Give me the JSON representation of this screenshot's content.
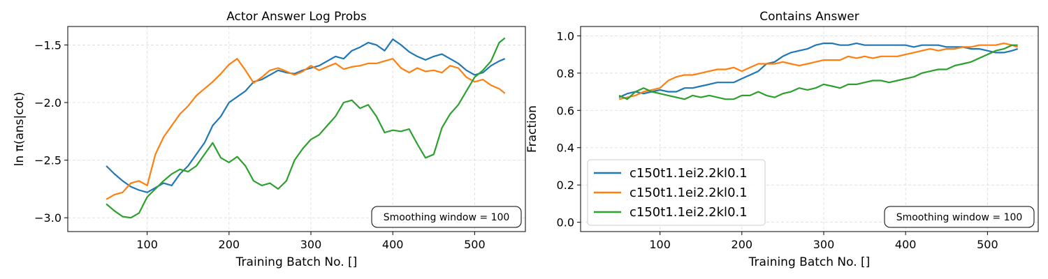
{
  "chart_data": [
    {
      "type": "line",
      "title": "Actor Answer Log Probs",
      "xlabel": "Training Batch No. []",
      "ylabel": "ln π(ans|cot)",
      "xlim": [
        3,
        562
      ],
      "ylim": [
        -3.12,
        -1.34
      ],
      "xticks": [
        100,
        200,
        300,
        400,
        500
      ],
      "yticks": [
        -3.0,
        -2.5,
        -2.0,
        -1.5
      ],
      "ytick_labels": [
        "−3.0",
        "−2.5",
        "−2.0",
        "−1.5"
      ],
      "grid": true,
      "annotation": "Smoothing window = 100",
      "annotation_position": "bottom-right",
      "series": [
        {
          "color": "#1f77b4",
          "x": [
            50,
            60,
            70,
            80,
            90,
            100,
            110,
            120,
            130,
            140,
            150,
            160,
            170,
            180,
            190,
            200,
            210,
            220,
            230,
            240,
            250,
            260,
            270,
            280,
            290,
            300,
            310,
            320,
            330,
            340,
            350,
            360,
            370,
            380,
            390,
            400,
            410,
            420,
            430,
            440,
            450,
            460,
            470,
            480,
            490,
            500,
            510,
            520,
            530,
            537
          ],
          "y": [
            -2.55,
            -2.62,
            -2.68,
            -2.73,
            -2.76,
            -2.78,
            -2.74,
            -2.7,
            -2.72,
            -2.62,
            -2.55,
            -2.45,
            -2.35,
            -2.2,
            -2.12,
            -2.0,
            -1.95,
            -1.9,
            -1.82,
            -1.8,
            -1.76,
            -1.72,
            -1.74,
            -1.75,
            -1.72,
            -1.7,
            -1.68,
            -1.64,
            -1.6,
            -1.62,
            -1.55,
            -1.52,
            -1.48,
            -1.5,
            -1.55,
            -1.45,
            -1.5,
            -1.56,
            -1.6,
            -1.63,
            -1.6,
            -1.58,
            -1.62,
            -1.66,
            -1.72,
            -1.76,
            -1.74,
            -1.68,
            -1.64,
            -1.62
          ]
        },
        {
          "color": "#ff7f0e",
          "x": [
            50,
            60,
            70,
            80,
            90,
            100,
            110,
            120,
            130,
            140,
            150,
            160,
            170,
            180,
            190,
            200,
            210,
            220,
            230,
            240,
            250,
            260,
            270,
            280,
            290,
            300,
            310,
            320,
            330,
            340,
            350,
            360,
            370,
            380,
            390,
            400,
            410,
            420,
            430,
            440,
            450,
            460,
            470,
            480,
            490,
            500,
            510,
            520,
            530,
            537
          ],
          "y": [
            -2.84,
            -2.8,
            -2.78,
            -2.7,
            -2.68,
            -2.72,
            -2.45,
            -2.3,
            -2.2,
            -2.1,
            -2.03,
            -1.94,
            -1.88,
            -1.82,
            -1.75,
            -1.67,
            -1.62,
            -1.72,
            -1.83,
            -1.78,
            -1.72,
            -1.7,
            -1.73,
            -1.76,
            -1.73,
            -1.68,
            -1.72,
            -1.69,
            -1.66,
            -1.71,
            -1.69,
            -1.68,
            -1.66,
            -1.66,
            -1.64,
            -1.62,
            -1.7,
            -1.74,
            -1.7,
            -1.73,
            -1.72,
            -1.74,
            -1.68,
            -1.7,
            -1.78,
            -1.82,
            -1.8,
            -1.85,
            -1.88,
            -1.92
          ]
        },
        {
          "color": "#2ca02c",
          "x": [
            50,
            60,
            70,
            80,
            90,
            100,
            110,
            120,
            130,
            140,
            150,
            160,
            170,
            180,
            190,
            200,
            210,
            220,
            230,
            240,
            250,
            260,
            270,
            280,
            290,
            300,
            310,
            320,
            330,
            340,
            350,
            360,
            370,
            380,
            390,
            400,
            410,
            420,
            430,
            440,
            450,
            460,
            470,
            480,
            490,
            500,
            510,
            520,
            530,
            537
          ],
          "y": [
            -2.88,
            -2.94,
            -2.99,
            -3.0,
            -2.96,
            -2.82,
            -2.75,
            -2.68,
            -2.62,
            -2.58,
            -2.6,
            -2.55,
            -2.45,
            -2.35,
            -2.48,
            -2.52,
            -2.47,
            -2.55,
            -2.68,
            -2.72,
            -2.7,
            -2.75,
            -2.68,
            -2.5,
            -2.4,
            -2.32,
            -2.28,
            -2.2,
            -2.12,
            -2.0,
            -1.98,
            -2.05,
            -2.02,
            -2.12,
            -2.26,
            -2.24,
            -2.25,
            -2.23,
            -2.36,
            -2.48,
            -2.45,
            -2.22,
            -2.1,
            -2.02,
            -1.9,
            -1.78,
            -1.72,
            -1.64,
            -1.48,
            -1.44
          ]
        }
      ]
    },
    {
      "type": "line",
      "title": "Contains Answer",
      "xlabel": "Training Batch No. []",
      "ylabel": "Fraction",
      "xlim": [
        3,
        562
      ],
      "ylim": [
        -0.05,
        1.05
      ],
      "xticks": [
        100,
        200,
        300,
        400,
        500
      ],
      "yticks": [
        0.0,
        0.2,
        0.4,
        0.6,
        0.8,
        1.0
      ],
      "ytick_labels": [
        "0.0",
        "0.2",
        "0.4",
        "0.6",
        "0.8",
        "1.0"
      ],
      "grid": true,
      "annotation": "Smoothing window = 100",
      "annotation_position": "bottom-right",
      "legend_position": "lower-left",
      "series": [
        {
          "name": "c150t1.1ei2.2kl0.1",
          "color": "#1f77b4",
          "x": [
            50,
            60,
            70,
            80,
            90,
            100,
            110,
            120,
            130,
            140,
            150,
            160,
            170,
            180,
            190,
            200,
            210,
            220,
            230,
            240,
            250,
            260,
            270,
            280,
            290,
            300,
            310,
            320,
            330,
            340,
            350,
            360,
            370,
            380,
            390,
            400,
            410,
            420,
            430,
            440,
            450,
            460,
            470,
            480,
            490,
            500,
            510,
            520,
            530,
            537
          ],
          "y": [
            0.67,
            0.69,
            0.7,
            0.69,
            0.7,
            0.71,
            0.7,
            0.7,
            0.72,
            0.72,
            0.73,
            0.74,
            0.75,
            0.75,
            0.75,
            0.77,
            0.79,
            0.81,
            0.85,
            0.86,
            0.89,
            0.91,
            0.92,
            0.93,
            0.95,
            0.96,
            0.96,
            0.95,
            0.95,
            0.96,
            0.95,
            0.95,
            0.95,
            0.95,
            0.95,
            0.95,
            0.94,
            0.95,
            0.95,
            0.95,
            0.94,
            0.94,
            0.94,
            0.93,
            0.93,
            0.92,
            0.91,
            0.91,
            0.92,
            0.93
          ]
        },
        {
          "name": "c150t1.1ei2.2kl0.1",
          "color": "#ff7f0e",
          "x": [
            50,
            60,
            70,
            80,
            90,
            100,
            110,
            120,
            130,
            140,
            150,
            160,
            170,
            180,
            190,
            200,
            210,
            220,
            230,
            240,
            250,
            260,
            270,
            280,
            290,
            300,
            310,
            320,
            330,
            340,
            350,
            360,
            370,
            380,
            390,
            400,
            410,
            420,
            430,
            440,
            450,
            460,
            470,
            480,
            490,
            500,
            510,
            520,
            530,
            537
          ],
          "y": [
            0.66,
            0.67,
            0.68,
            0.7,
            0.71,
            0.72,
            0.76,
            0.78,
            0.79,
            0.79,
            0.8,
            0.81,
            0.82,
            0.82,
            0.83,
            0.81,
            0.83,
            0.85,
            0.85,
            0.85,
            0.86,
            0.85,
            0.84,
            0.85,
            0.86,
            0.87,
            0.87,
            0.87,
            0.89,
            0.88,
            0.89,
            0.88,
            0.89,
            0.89,
            0.89,
            0.9,
            0.91,
            0.92,
            0.93,
            0.92,
            0.93,
            0.93,
            0.94,
            0.94,
            0.95,
            0.95,
            0.95,
            0.96,
            0.95,
            0.94
          ]
        },
        {
          "name": "c150t1.1ei2.2kl0.1",
          "color": "#2ca02c",
          "x": [
            50,
            60,
            70,
            80,
            90,
            100,
            110,
            120,
            130,
            140,
            150,
            160,
            170,
            180,
            190,
            200,
            210,
            220,
            230,
            240,
            250,
            260,
            270,
            280,
            290,
            300,
            310,
            320,
            330,
            340,
            350,
            360,
            370,
            380,
            390,
            400,
            410,
            420,
            430,
            440,
            450,
            460,
            470,
            480,
            490,
            500,
            510,
            520,
            530,
            537
          ],
          "y": [
            0.68,
            0.66,
            0.7,
            0.72,
            0.7,
            0.69,
            0.68,
            0.67,
            0.66,
            0.68,
            0.67,
            0.68,
            0.67,
            0.66,
            0.66,
            0.68,
            0.68,
            0.7,
            0.68,
            0.67,
            0.69,
            0.7,
            0.72,
            0.71,
            0.72,
            0.74,
            0.73,
            0.72,
            0.74,
            0.74,
            0.75,
            0.76,
            0.76,
            0.75,
            0.76,
            0.77,
            0.78,
            0.8,
            0.81,
            0.82,
            0.82,
            0.84,
            0.85,
            0.86,
            0.88,
            0.9,
            0.92,
            0.93,
            0.95,
            0.95
          ]
        }
      ]
    }
  ]
}
